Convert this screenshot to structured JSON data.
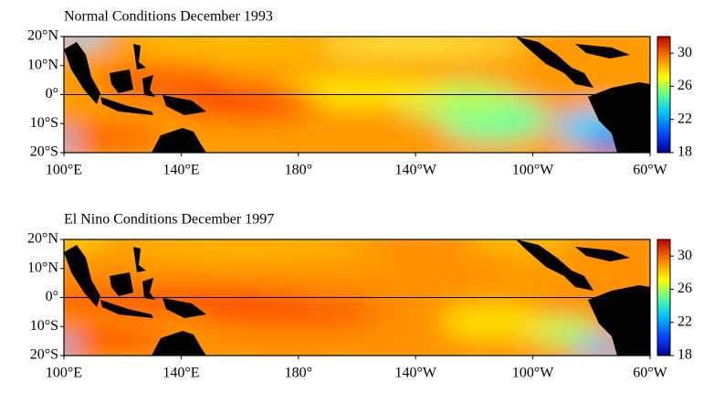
{
  "panels": [
    {
      "title": "Normal Conditions December 1993",
      "y_labels": [
        "20°N",
        "10°N",
        "0°",
        "10°S",
        "20°S"
      ],
      "x_labels": [
        "100°E",
        "140°E",
        "180°",
        "140°W",
        "100°W",
        "60°W"
      ],
      "colorbar_range": [
        18,
        32
      ],
      "colorbar_ticks": [
        18,
        22,
        26,
        30
      ]
    },
    {
      "title": "El Nino Conditions December 1997",
      "y_labels": [
        "20°N",
        "10°N",
        "0°",
        "10°S",
        "20°S"
      ],
      "x_labels": [
        "100°E",
        "140°E",
        "180°",
        "140°W",
        "100°W",
        "60°W"
      ],
      "colorbar_range": [
        18,
        32
      ],
      "colorbar_ticks": [
        18,
        22,
        26,
        30
      ]
    }
  ]
}
